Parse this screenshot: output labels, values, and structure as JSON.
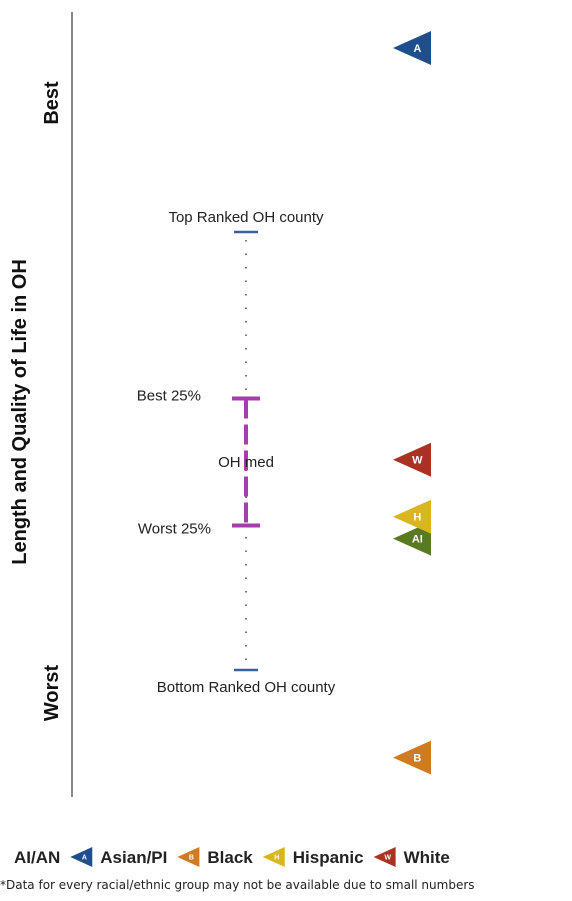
{
  "chart_data": {
    "type": "scatter",
    "ylabel": "Length and Quality of Life in OH",
    "axis_end_labels": {
      "top": "Best",
      "bottom": "Worst"
    },
    "county_range": {
      "top_label": "Top Ranked OH county",
      "bottom_label": "Bottom Ranked OH county",
      "best25_label": "Best 25%",
      "worst25_label": "Worst 25%",
      "median_label": "OH med",
      "top": 100,
      "best25": 62,
      "worst25": 33,
      "bottom": 0
    },
    "series": [
      {
        "name": "AI/AN",
        "marker": "AI",
        "value": 30,
        "color": "#5a7a22"
      },
      {
        "name": "Asian/PI",
        "marker": "A",
        "value": 142,
        "color": "#1f4e8c"
      },
      {
        "name": "Black",
        "marker": "B",
        "value": -20,
        "color": "#d07a22"
      },
      {
        "name": "Hispanic",
        "marker": "H",
        "value": 35,
        "color": "#d9b520"
      },
      {
        "name": "White",
        "marker": "W",
        "value": 48,
        "color": "#a93222"
      }
    ],
    "range_color": "#a040a8",
    "endpoint_color": "#3a5f9a"
  },
  "footnote": "*Data for every racial/ethnic group may not be available due to small numbers"
}
